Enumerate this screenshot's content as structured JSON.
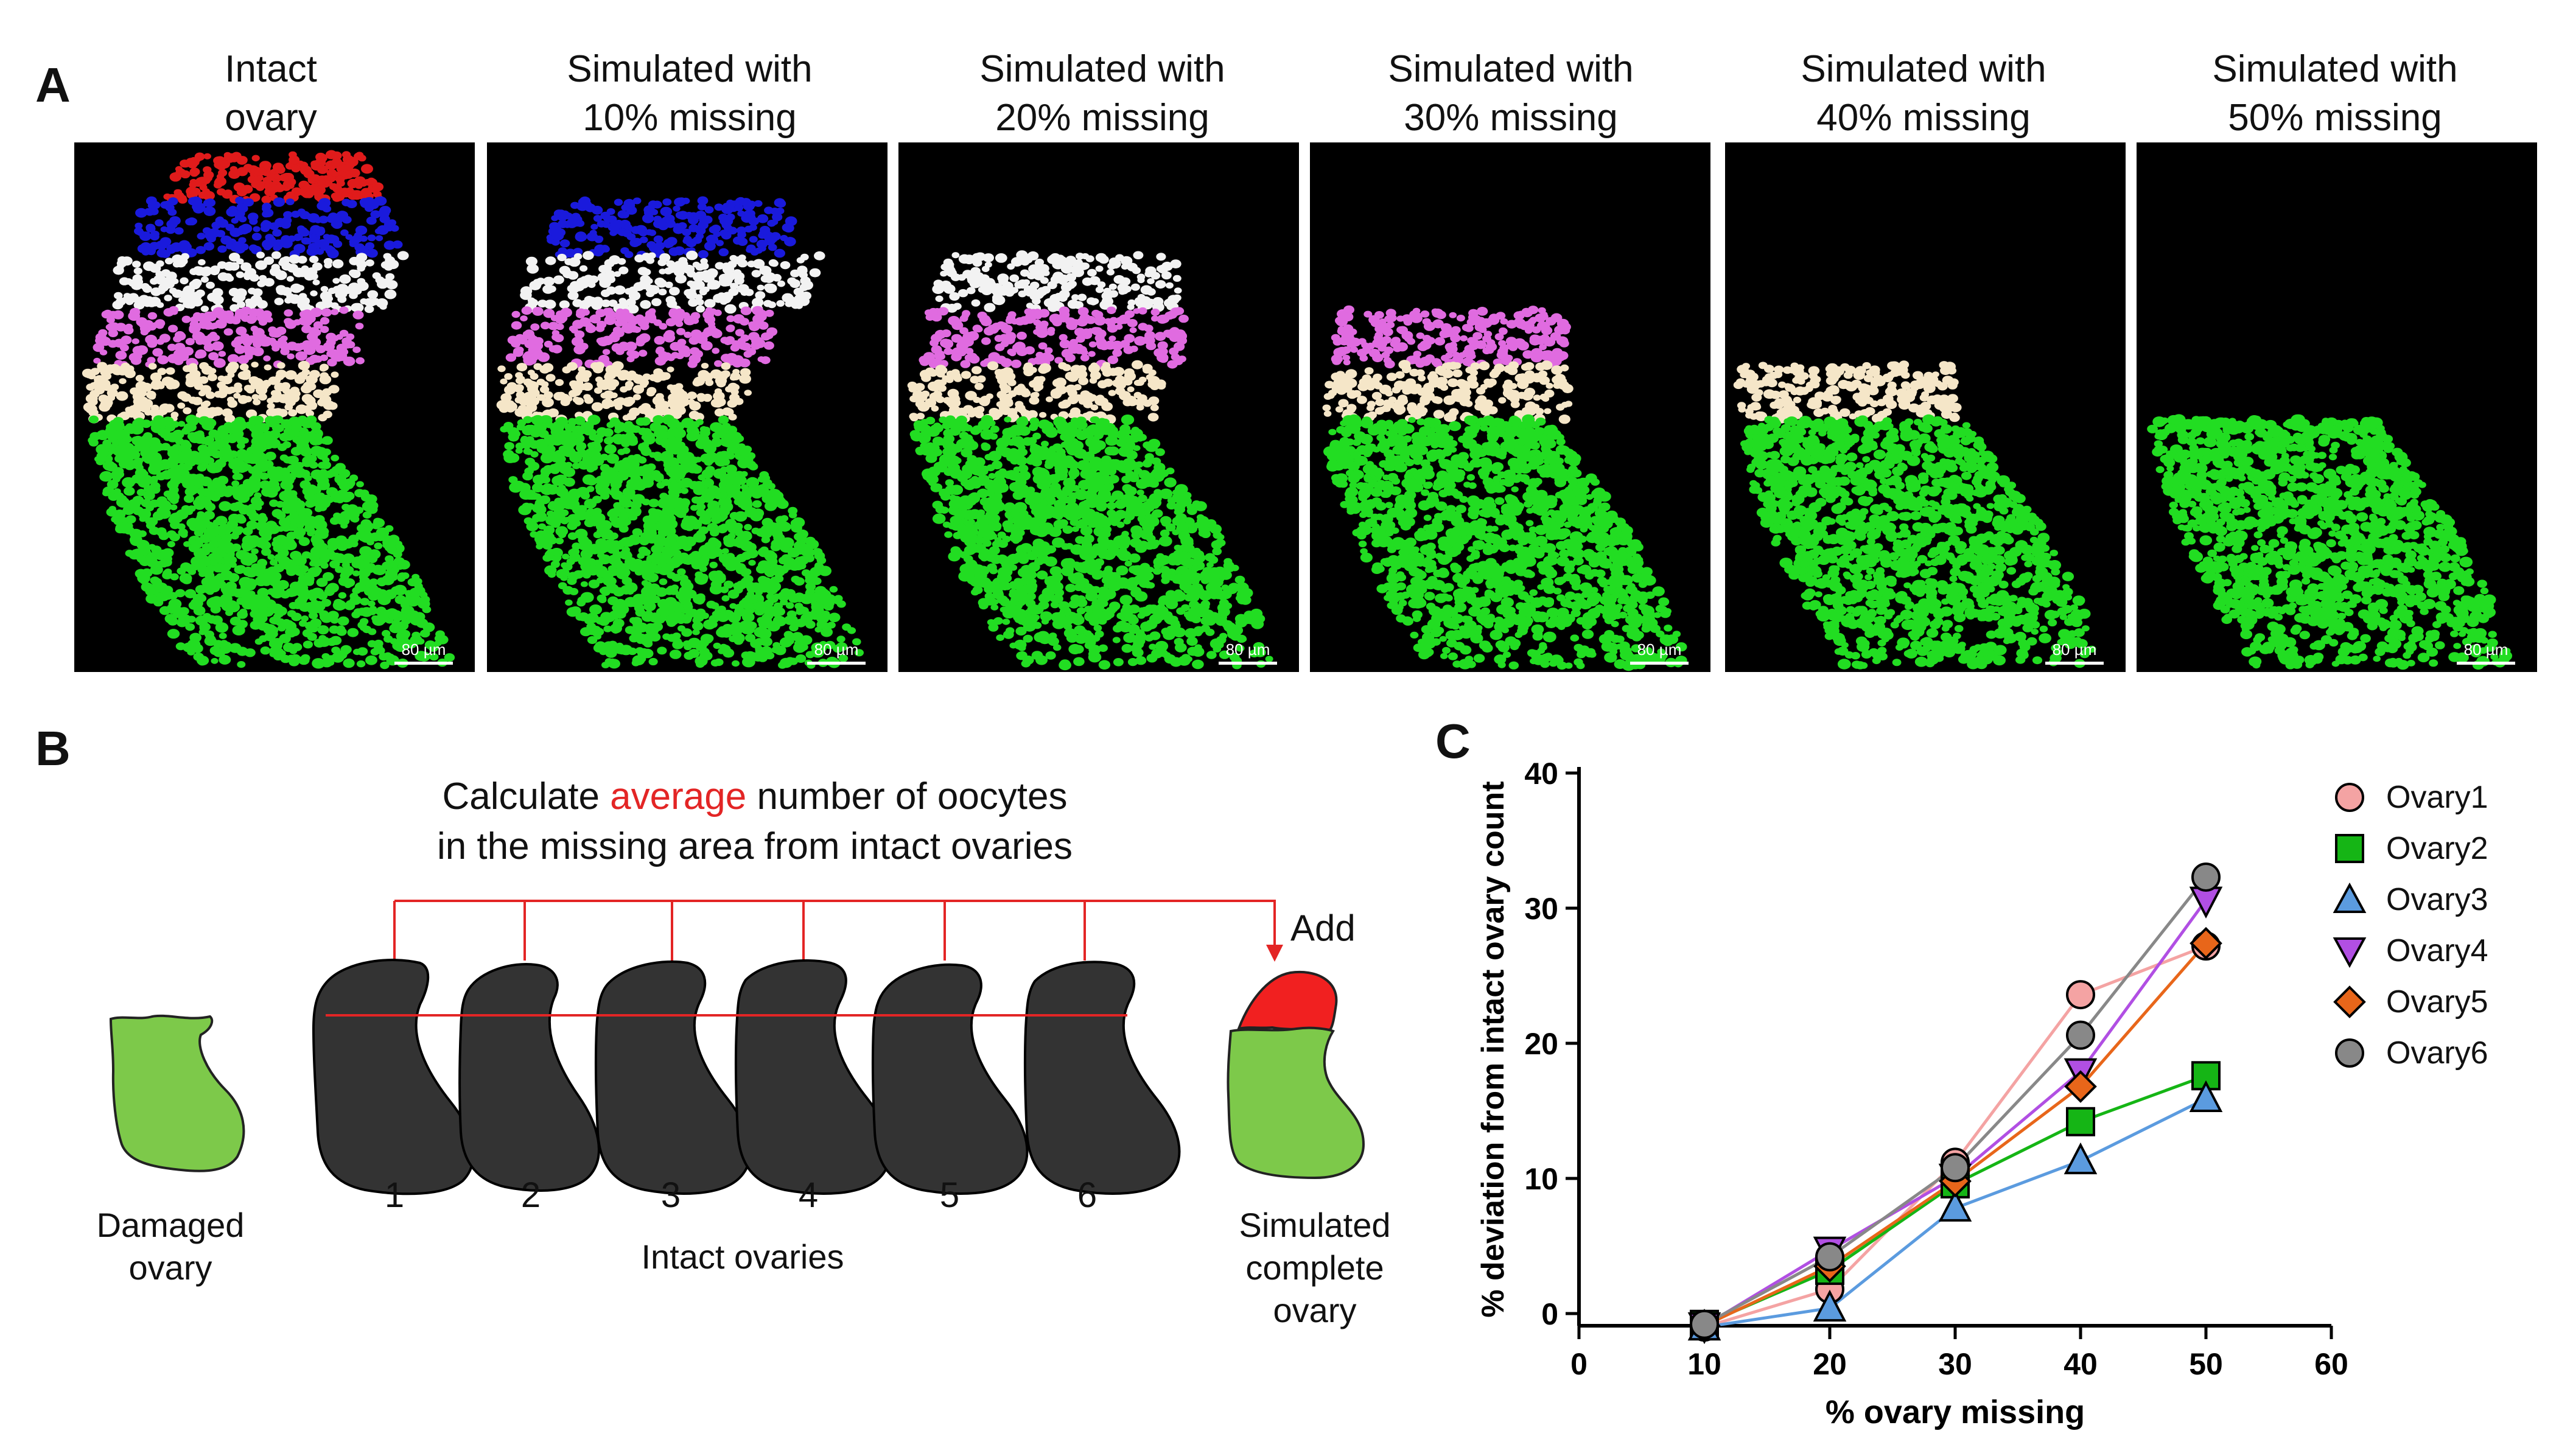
{
  "panel_a": {
    "letter": "A",
    "columns": [
      {
        "line1": "Intact",
        "line2": "ovary",
        "scale": "80 µm"
      },
      {
        "line1": "Simulated with",
        "line2": "10% missing",
        "scale": "80 µm"
      },
      {
        "line1": "Simulated with",
        "line2": "20% missing",
        "scale": "80 µm"
      },
      {
        "line1": "Simulated with",
        "line2": "30% missing",
        "scale": "80 µm"
      },
      {
        "line1": "Simulated with",
        "line2": "40% missing",
        "scale": "80 µm"
      },
      {
        "line1": "Simulated with",
        "line2": "50% missing",
        "scale": "80 µm"
      }
    ],
    "band_colors": [
      "#e01b1b",
      "#1a1adc",
      "#f2f2f2",
      "#e06be0",
      "#f5e6c8",
      "#22dd22"
    ]
  },
  "panel_b": {
    "letter": "B",
    "heading_pre": "Calculate ",
    "heading_accent": "average",
    "heading_post": " number of oocytes",
    "heading_line2": "in the missing area from intact ovaries",
    "add_label": "Add",
    "damaged_line1": "Damaged",
    "damaged_line2": "ovary",
    "intact_numbers": [
      "1",
      "2",
      "3",
      "4",
      "5",
      "6"
    ],
    "intact_label": "Intact ovaries",
    "simulated_line1": "Simulated",
    "simulated_line2": "complete",
    "simulated_line3": "ovary",
    "colors": {
      "ovary_green": "#7dc94a",
      "intact_dark": "#333333",
      "accent_red": "#e32525"
    }
  },
  "chart_data": {
    "letter": "C",
    "type": "line",
    "xlabel": "% ovary missing",
    "ylabel": "% deviation from intact ovary count",
    "xlim": [
      0,
      60
    ],
    "ylim": [
      0,
      40
    ],
    "xticks": [
      0,
      10,
      20,
      30,
      40,
      50,
      60
    ],
    "yticks": [
      0,
      10,
      20,
      30,
      40
    ],
    "x": [
      10,
      20,
      30,
      40,
      50
    ],
    "series": [
      {
        "name": "Ovary1",
        "marker": "circle",
        "color": "#f4a3a3",
        "values": [
          -1,
          1.8,
          11.2,
          23.6,
          27.2
        ]
      },
      {
        "name": "Ovary2",
        "marker": "square",
        "color": "#15b515",
        "values": [
          -0.8,
          3.2,
          9.6,
          14.2,
          17.6
        ]
      },
      {
        "name": "Ovary3",
        "marker": "triangle-up",
        "color": "#5b9bdf",
        "values": [
          -1,
          0.4,
          7.8,
          11.3,
          15.9
        ]
      },
      {
        "name": "Ovary4",
        "marker": "triangle-down",
        "color": "#b14fe3",
        "values": [
          -0.9,
          4.7,
          10.1,
          17.9,
          30.6
        ]
      },
      {
        "name": "Ovary5",
        "marker": "diamond",
        "color": "#e8661a",
        "values": [
          -0.9,
          3.5,
          9.8,
          16.8,
          27.4
        ]
      },
      {
        "name": "Ovary6",
        "marker": "circle",
        "color": "#888888",
        "values": [
          -0.8,
          4.2,
          10.8,
          20.6,
          32.3
        ]
      }
    ],
    "legend_position": "top-right"
  }
}
